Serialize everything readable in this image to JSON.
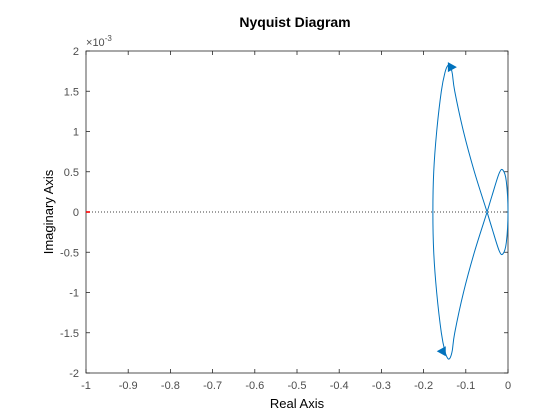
{
  "chart_data": {
    "type": "line",
    "title": "Nyquist Diagram",
    "xlabel": "Real Axis",
    "ylabel": "Imaginary Axis",
    "y_exponent_label": "10",
    "y_exponent_power": "-3",
    "y_exponent_prefix": "×",
    "xlim": [
      -1,
      0
    ],
    "ylim": [
      -2,
      2
    ],
    "x_ticks": [
      -1,
      -0.9,
      -0.8,
      -0.7,
      -0.6,
      -0.5,
      -0.4,
      -0.3,
      -0.2,
      -0.1,
      0
    ],
    "x_tick_labels": [
      "-1",
      "-0.9",
      "-0.8",
      "-0.7",
      "-0.6",
      "-0.5",
      "-0.4",
      "-0.3",
      "-0.2",
      "-0.1",
      "0"
    ],
    "y_ticks": [
      -2,
      -1.5,
      -1,
      -0.5,
      0,
      0.5,
      1,
      1.5,
      2
    ],
    "y_tick_labels": [
      "-2",
      "-1.5",
      "-1",
      "-0.5",
      "0",
      "0.5",
      "1",
      "1.5",
      "2"
    ],
    "y_units_note": "y values in units of 1e-3",
    "grid": false,
    "colors": {
      "curve": "#0072bd",
      "critical_point": "#ff0000",
      "zero_line": "#000000",
      "axes": "#262626"
    },
    "series": [
      {
        "points": [
          [
            -0.0496,
            0.0
          ],
          [
            -0.0797,
            0.5
          ],
          [
            -0.1055,
            1.0
          ],
          [
            -0.1262,
            1.5
          ],
          [
            -0.132,
            1.72
          ],
          [
            -0.137,
            1.81
          ],
          [
            -0.1425,
            1.82
          ],
          [
            -0.1495,
            1.73
          ],
          [
            -0.158,
            1.5
          ],
          [
            -0.169,
            1.0
          ],
          [
            -0.176,
            0.5
          ],
          [
            -0.178,
            0.0
          ],
          [
            -0.176,
            -0.5
          ],
          [
            -0.169,
            -1.0
          ],
          [
            -0.158,
            -1.5
          ],
          [
            -0.1495,
            -1.73
          ],
          [
            -0.1425,
            -1.82
          ],
          [
            -0.137,
            -1.81
          ],
          [
            -0.132,
            -1.72
          ],
          [
            -0.1262,
            -1.5
          ],
          [
            -0.1055,
            -1.0
          ],
          [
            -0.0797,
            -0.5
          ],
          [
            -0.0496,
            0.0
          ],
          [
            -0.038,
            0.2
          ],
          [
            -0.021,
            0.48
          ],
          [
            -0.012,
            0.52
          ],
          [
            -0.004,
            0.38
          ],
          [
            0.0,
            0.0
          ],
          [
            -0.004,
            -0.38
          ],
          [
            -0.012,
            -0.52
          ],
          [
            -0.021,
            -0.48
          ],
          [
            -0.038,
            -0.2
          ],
          [
            -0.0496,
            0.0
          ]
        ]
      }
    ],
    "arrows": [
      {
        "x": -0.133,
        "y": 1.8,
        "direction": "right"
      },
      {
        "x": -0.157,
        "y": -1.73,
        "direction": "left"
      }
    ],
    "critical_point": {
      "x": -1,
      "y": 0
    }
  }
}
